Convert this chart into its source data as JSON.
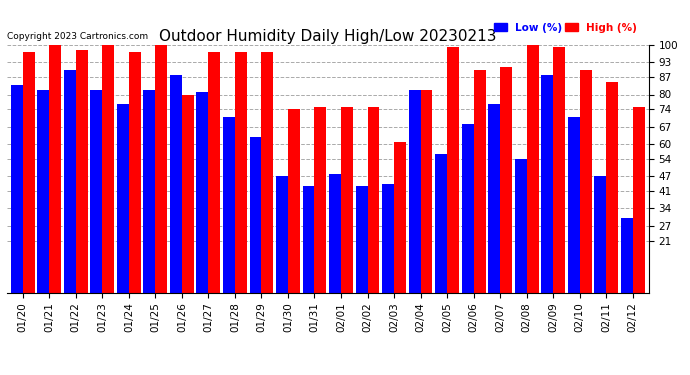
{
  "title": "Outdoor Humidity Daily High/Low 20230213",
  "copyright": "Copyright 2023 Cartronics.com",
  "dates": [
    "01/20",
    "01/21",
    "01/22",
    "01/23",
    "01/24",
    "01/25",
    "01/26",
    "01/27",
    "01/28",
    "01/29",
    "01/30",
    "01/31",
    "02/01",
    "02/02",
    "02/03",
    "02/04",
    "02/05",
    "02/06",
    "02/07",
    "02/08",
    "02/09",
    "02/10",
    "02/11",
    "02/12"
  ],
  "low_values": [
    84,
    82,
    90,
    82,
    76,
    82,
    88,
    81,
    71,
    63,
    47,
    43,
    48,
    43,
    44,
    82,
    56,
    68,
    76,
    54,
    88,
    71,
    47,
    30
  ],
  "high_values": [
    97,
    100,
    98,
    100,
    97,
    100,
    80,
    97,
    97,
    97,
    74,
    75,
    75,
    75,
    61,
    82,
    99,
    90,
    91,
    100,
    99,
    90,
    85,
    75
  ],
  "low_color": "#0000ff",
  "high_color": "#ff0000",
  "bg_color": "#ffffff",
  "plot_bg_color": "#ffffff",
  "ylim_min": 0,
  "ylim_max": 100,
  "yticks": [
    21,
    27,
    34,
    41,
    47,
    54,
    60,
    67,
    74,
    80,
    87,
    93,
    100
  ],
  "grid_color": "#aaaaaa",
  "title_fontsize": 11,
  "tick_fontsize": 7.5,
  "legend_low_label": "Low (%)",
  "legend_high_label": "High (%)"
}
